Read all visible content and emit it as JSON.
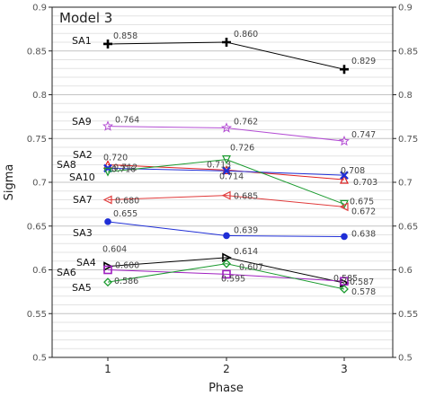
{
  "chart_data": {
    "type": "line",
    "title": "Model 3",
    "xlabel": "Phase",
    "ylabel": "Sigma",
    "categories": [
      "1",
      "2",
      "3"
    ],
    "x_tick_labels": [
      "1",
      "2",
      "3"
    ],
    "ylim": [
      0.5,
      0.9
    ],
    "y_tick_labels": [
      "0.5",
      "0.55",
      "0.6",
      "0.65",
      "0.7",
      "0.75",
      "0.8",
      "0.85",
      "0.9"
    ],
    "y_ticks": [
      0.5,
      0.55,
      0.6,
      0.65,
      0.7,
      0.75,
      0.8,
      0.85,
      0.9
    ],
    "grid": "horizontal",
    "right_axis_mirrored": true,
    "series": [
      {
        "name": "SA1",
        "values": [
          0.858,
          0.86,
          0.829
        ],
        "labels": [
          "0.858",
          "0.860",
          "0.829"
        ],
        "color": "#000000",
        "marker": "plus"
      },
      {
        "name": "SA9",
        "values": [
          0.764,
          0.762,
          0.747
        ],
        "labels": [
          "0.764",
          "0.762",
          "0.747"
        ],
        "color": "#b44fd4",
        "marker": "star"
      },
      {
        "name": "SA2",
        "values": [
          0.72,
          0.714,
          0.703
        ],
        "labels": [
          "0.720",
          "0.714",
          "0.703"
        ],
        "color": "#e02020",
        "marker": "triangle-up"
      },
      {
        "name": "SA8",
        "values": [
          0.716,
          0.713,
          0.708
        ],
        "labels": [
          "0.716",
          "0.713",
          "0.708"
        ],
        "color": "#1f2ed6",
        "marker": "x"
      },
      {
        "name": "SA10",
        "values": [
          0.712,
          0.726,
          0.675
        ],
        "labels": [
          "0.712",
          "0.726",
          "0.675"
        ],
        "color": "#1a9a2e",
        "marker": "triangle-down"
      },
      {
        "name": "SA7",
        "values": [
          0.68,
          0.685,
          0.672
        ],
        "labels": [
          "0.680",
          "0.685",
          "0.672"
        ],
        "color": "#e03a3a",
        "marker": "triangle-left"
      },
      {
        "name": "SA3",
        "values": [
          0.655,
          0.639,
          0.638
        ],
        "labels": [
          "0.655",
          "0.639",
          "0.638"
        ],
        "color": "#1f2ed6",
        "marker": "circle"
      },
      {
        "name": "SA4",
        "values": [
          0.604,
          0.614,
          0.585
        ],
        "labels": [
          "0.604",
          "0.614",
          "0.585"
        ],
        "color": "#000000",
        "marker": "triangle-right"
      },
      {
        "name": "SA6",
        "values": [
          0.6,
          0.595,
          0.587
        ],
        "labels": [
          "0.600",
          "0.595",
          "0.587"
        ],
        "color": "#a020c0",
        "marker": "square"
      },
      {
        "name": "SA5",
        "values": [
          0.586,
          0.607,
          0.578
        ],
        "labels": [
          "0.586",
          "0.607",
          "0.578"
        ],
        "color": "#1a9a2e",
        "marker": "diamond"
      }
    ]
  }
}
